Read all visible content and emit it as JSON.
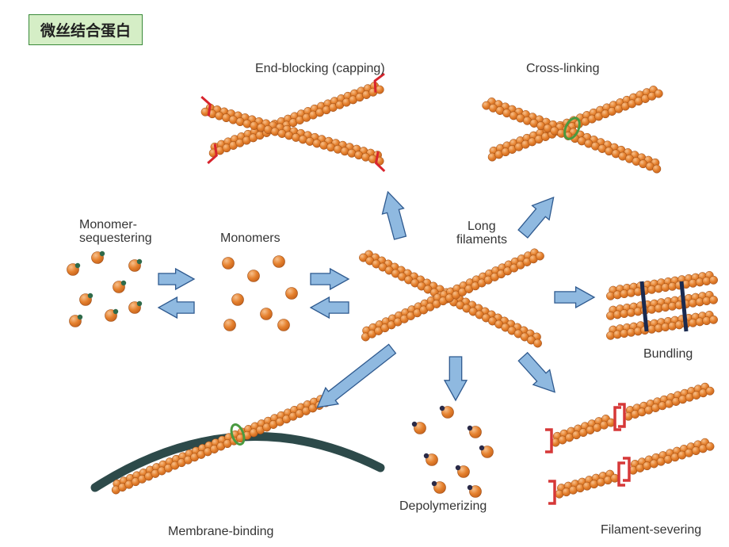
{
  "title": "微丝结合蛋白",
  "labels": {
    "endblocking": "End-blocking (capping)",
    "crosslinking": "Cross-linking",
    "monomerseq_l1": "Monomer-",
    "monomerseq_l2": "sequestering",
    "monomers": "Monomers",
    "longfil_l1": "Long",
    "longfil_l2": "filaments",
    "bundling": "Bundling",
    "depoly": "Depolymerizing",
    "membrane": "Membrane-binding",
    "severing": "Filament-severing"
  },
  "colors": {
    "bead_fill": "#e5812e",
    "bead_shine": "#f7c08c",
    "bead_dark": "#c5621c",
    "arrow_fill": "#8fb9e0",
    "arrow_stroke": "#2f5a8f",
    "cap_red": "#d8242d",
    "sever_red": "#d63838",
    "seq_dot": "#2f6a4a",
    "depoly_dot": "#2a2a47",
    "membrane": "#2d4a4a",
    "link_green": "#4a9a40",
    "bundle_line": "#1a2a50",
    "bg": "#ffffff"
  },
  "geom": {
    "bead_r": 5.2,
    "bead_gap": 9.0,
    "arrow_w": 34,
    "arrow_h": 22
  }
}
